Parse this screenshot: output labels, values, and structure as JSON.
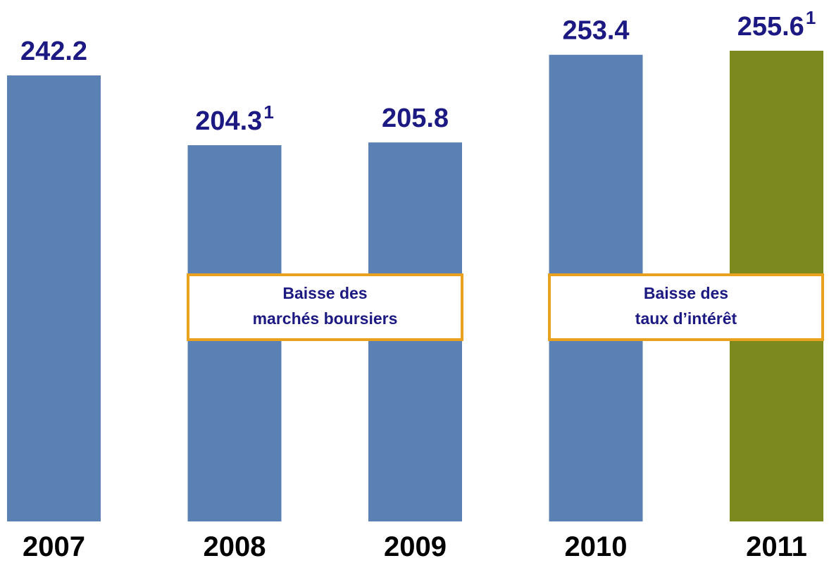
{
  "chart_data": {
    "type": "bar",
    "categories": [
      "2007",
      "2008",
      "2009",
      "2010",
      "2011"
    ],
    "values": [
      242.2,
      204.3,
      205.8,
      253.4,
      255.6
    ],
    "value_label_notes": [
      null,
      "1",
      null,
      null,
      "1"
    ],
    "colors": [
      "#5b80b4",
      "#5b80b4",
      "#5b80b4",
      "#5b80b4",
      "#7b891e"
    ],
    "annotations": [
      {
        "lines": [
          "Baisse des",
          "marchés boursiers"
        ]
      },
      {
        "lines": [
          "Baisse des",
          "taux d’intérêt"
        ]
      }
    ]
  }
}
